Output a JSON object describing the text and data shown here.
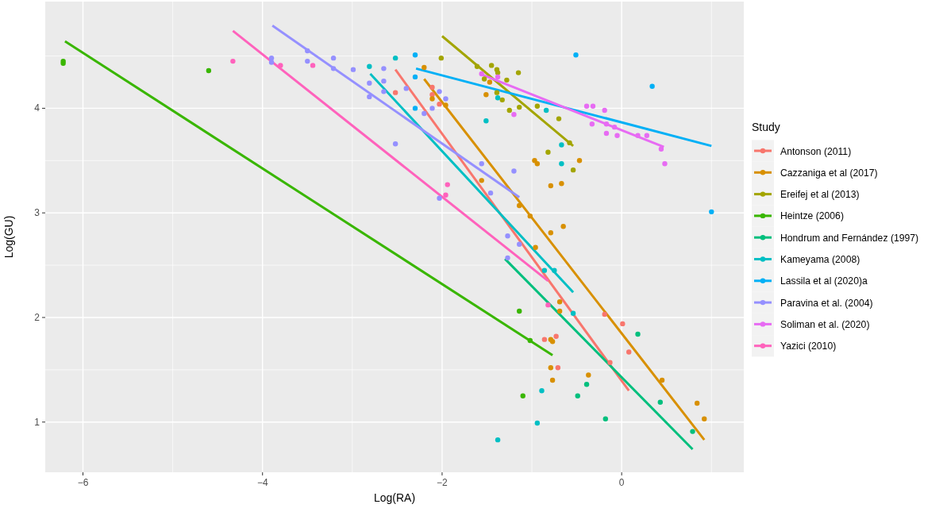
{
  "chart_data": {
    "type": "scatter",
    "xlabel": "Log(RA)",
    "ylabel": "Log(GU)",
    "legend_title": "Study",
    "legend": "right",
    "grid": true,
    "marker": "circle",
    "xlim": [
      -6.42,
      1.36
    ],
    "xticks": [
      {
        "value": -5,
        "label": null
      },
      -6,
      -4,
      -2,
      0,
      {
        "value": -3,
        "label": null
      },
      {
        "value": -1,
        "label": null
      },
      {
        "value": 1,
        "label": null
      }
    ],
    "ylim": [
      0.52,
      5.02
    ],
    "yticks": [
      1,
      2,
      3,
      4,
      {
        "value": 1.5,
        "label": null
      },
      {
        "value": 2.5,
        "label": null
      },
      {
        "value": 3.5,
        "label": null
      },
      {
        "value": 4.5,
        "label": null
      }
    ],
    "series": [
      {
        "name": "Antonson (2011)",
        "color": "#f8766d",
        "x": [
          -2.52,
          -2.11,
          -2.11,
          -2.03,
          -0.19,
          0.01,
          0.08,
          -0.13,
          -0.86,
          -0.73,
          -0.71
        ],
        "values": [
          4.15,
          4.2,
          4.13,
          4.04,
          2.03,
          1.94,
          1.67,
          1.57,
          1.79,
          1.82,
          1.52
        ]
      },
      {
        "name": "Cazzaniga et al (2017)",
        "color": "#d89000",
        "x": [
          -2.2,
          -2.11,
          -1.96,
          -1.51,
          -1.47,
          -0.97,
          -0.94,
          -0.47,
          -0.79,
          -0.67,
          -1.56,
          -1.14,
          -1.02,
          -0.79,
          -0.65,
          -0.96,
          -0.69,
          -0.69,
          -0.79,
          -0.77,
          -0.79,
          -0.77,
          -0.37,
          0.45,
          0.84,
          0.92
        ],
        "values": [
          4.39,
          4.09,
          4.03,
          4.13,
          4.25,
          3.5,
          3.47,
          3.5,
          3.26,
          3.28,
          3.31,
          3.07,
          2.97,
          2.81,
          2.87,
          2.67,
          2.15,
          2.06,
          1.79,
          1.77,
          1.52,
          1.4,
          1.45,
          1.4,
          1.18,
          1.03
        ]
      },
      {
        "name": "Ereifej et al (2013)",
        "color": "#a3a500",
        "x": [
          -2.01,
          -1.61,
          -1.45,
          -1.39,
          -1.38,
          -1.53,
          -1.28,
          -1.15,
          -1.39,
          -1.33,
          -1.25,
          -1.14,
          -0.94,
          -0.7,
          -0.82,
          -0.54,
          -0.58
        ],
        "values": [
          4.48,
          4.4,
          4.41,
          4.37,
          4.34,
          4.28,
          4.27,
          4.34,
          4.15,
          4.08,
          3.98,
          4.01,
          4.02,
          3.9,
          3.58,
          3.41,
          3.67
        ]
      },
      {
        "name": "Heintze (2006)",
        "color": "#39b600",
        "x": [
          -6.22,
          -6.22,
          -4.6,
          -1.14,
          -1.1,
          -1.02
        ],
        "values": [
          4.45,
          4.43,
          4.36,
          2.06,
          1.25,
          1.78
        ]
      },
      {
        "name": "Hondrum and Fernández (1997)",
        "color": "#00bf7d",
        "x": [
          -0.49,
          -0.39,
          -0.18,
          0.18,
          0.43,
          0.79
        ],
        "values": [
          1.25,
          1.36,
          1.03,
          1.84,
          1.19,
          0.91
        ]
      },
      {
        "name": "Kameyama (2008)",
        "color": "#00bfc4",
        "x": [
          -2.81,
          -2.52,
          -1.38,
          -1.51,
          -0.84,
          -0.67,
          -0.67,
          -0.86,
          -0.75,
          -0.54,
          -0.89,
          -0.94,
          -1.38
        ],
        "values": [
          4.4,
          4.48,
          4.1,
          3.88,
          3.98,
          3.65,
          3.47,
          2.45,
          2.45,
          2.04,
          1.3,
          0.99,
          0.83
        ]
      },
      {
        "name": "Lassila et al (2020)a",
        "color": "#00b0f6",
        "x": [
          -2.3,
          -2.3,
          -2.3,
          -0.51,
          0.34,
          1.0
        ],
        "values": [
          4.51,
          4.3,
          4.0,
          4.51,
          4.21,
          3.01
        ]
      },
      {
        "name": "Paravina et al. (2004)",
        "color": "#9590ff",
        "x": [
          -3.9,
          -3.9,
          -3.5,
          -3.5,
          -3.21,
          -3.21,
          -2.99,
          -2.81,
          -2.81,
          -2.65,
          -2.65,
          -2.65,
          -2.4,
          -2.2,
          -2.11,
          -2.03,
          -1.96,
          -2.52,
          -1.56,
          -1.2,
          -2.03,
          -1.46,
          -1.27,
          -1.14,
          -1.27
        ],
        "values": [
          4.48,
          4.44,
          4.55,
          4.45,
          4.48,
          4.38,
          4.37,
          4.24,
          4.11,
          4.38,
          4.26,
          4.16,
          4.19,
          3.95,
          4.0,
          4.16,
          4.09,
          3.66,
          3.47,
          3.4,
          3.14,
          3.19,
          2.78,
          2.7,
          2.57
        ]
      },
      {
        "name": "Soliman et al. (2020)",
        "color": "#e76bf3",
        "x": [
          -1.56,
          -1.38,
          -1.2,
          -0.39,
          -0.32,
          -0.19,
          -0.33,
          -0.17,
          -0.08,
          -0.17,
          -0.05,
          0.18,
          0.28,
          0.44,
          0.48
        ],
        "values": [
          4.33,
          4.3,
          3.94,
          4.02,
          4.02,
          3.98,
          3.85,
          3.85,
          3.82,
          3.76,
          3.74,
          3.74,
          3.74,
          3.61,
          3.47
        ]
      },
      {
        "name": "Yazici (2010)",
        "color": "#ff62bc",
        "x": [
          -4.33,
          -3.8,
          -3.44,
          -1.94,
          -1.96,
          -0.82
        ],
        "values": [
          4.45,
          4.41,
          4.41,
          3.27,
          3.17,
          2.12
        ]
      },
      {
        "type": "line",
        "marker": "none",
        "color": "#f8766d",
        "x": [
          -2.52,
          0.08
        ],
        "values": [
          4.37,
          1.3
        ]
      },
      {
        "type": "line",
        "marker": "none",
        "color": "#d89000",
        "x": [
          -2.2,
          0.92
        ],
        "values": [
          4.28,
          0.83
        ]
      },
      {
        "type": "line",
        "marker": "none",
        "color": "#a3a500",
        "x": [
          -2.0,
          -0.54
        ],
        "values": [
          4.69,
          3.64
        ]
      },
      {
        "type": "line",
        "marker": "none",
        "color": "#39b600",
        "x": [
          -6.2,
          -0.77
        ],
        "values": [
          4.64,
          1.64
        ]
      },
      {
        "type": "line",
        "marker": "none",
        "color": "#00bf7d",
        "x": [
          -1.3,
          0.79
        ],
        "values": [
          2.56,
          0.74
        ]
      },
      {
        "type": "line",
        "marker": "none",
        "color": "#00bfc4",
        "x": [
          -2.8,
          -0.54
        ],
        "values": [
          4.33,
          2.24
        ]
      },
      {
        "type": "line",
        "marker": "none",
        "color": "#00b0f6",
        "x": [
          -2.29,
          1.0
        ],
        "values": [
          4.38,
          3.64
        ]
      },
      {
        "type": "line",
        "marker": "none",
        "color": "#9590ff",
        "x": [
          -3.89,
          -1.14
        ],
        "values": [
          4.79,
          3.15
        ]
      },
      {
        "type": "line",
        "marker": "none",
        "color": "#e76bf3",
        "x": [
          -1.58,
          0.47
        ],
        "values": [
          4.33,
          3.63
        ]
      },
      {
        "type": "line",
        "marker": "none",
        "color": "#ff62bc",
        "x": [
          -4.33,
          -0.82
        ],
        "values": [
          4.74,
          2.35
        ]
      }
    ]
  }
}
